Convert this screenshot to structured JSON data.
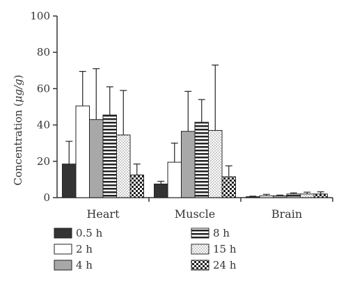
{
  "chart_data": {
    "type": "bar",
    "categories": [
      "Heart",
      "Muscle",
      "Brain"
    ],
    "series": [
      {
        "name": "0.5 h",
        "values": [
          18.5,
          7.5,
          0.5
        ],
        "errors": [
          12.5,
          1.5,
          0.3
        ],
        "color": "#333333",
        "pattern": "solid-dark"
      },
      {
        "name": "2 h",
        "values": [
          50.5,
          19.5,
          1.0
        ],
        "errors": [
          19.0,
          10.5,
          0.8
        ],
        "color": "#ffffff",
        "pattern": "white"
      },
      {
        "name": "4 h",
        "values": [
          43.0,
          36.5,
          1.0
        ],
        "errors": [
          28.0,
          22.0,
          0.4
        ],
        "color": "#a8a8a8",
        "pattern": "solid-gray"
      },
      {
        "name": "8 h",
        "values": [
          45.5,
          41.5,
          2.0
        ],
        "errors": [
          15.5,
          12.5,
          0.6
        ],
        "color": "#ffffff",
        "pattern": "horizontal-stripes"
      },
      {
        "name": "15 h",
        "values": [
          34.5,
          37.0,
          2.0
        ],
        "errors": [
          24.5,
          36.0,
          1.0
        ],
        "color": "#ffffff",
        "pattern": "dots"
      },
      {
        "name": "24 h",
        "values": [
          12.5,
          11.5,
          2.0
        ],
        "errors": [
          6.0,
          6.0,
          1.2
        ],
        "color": "#ffffff",
        "pattern": "checker"
      }
    ],
    "ylabel_prefix": "Concentration (",
    "ylabel_unit": "μg/g",
    "ylabel_suffix": ")",
    "ylim": [
      0,
      100
    ],
    "yticks": [
      "0",
      "20",
      "40",
      "60",
      "80",
      "100"
    ],
    "grid": false,
    "legend_position": "bottom"
  }
}
